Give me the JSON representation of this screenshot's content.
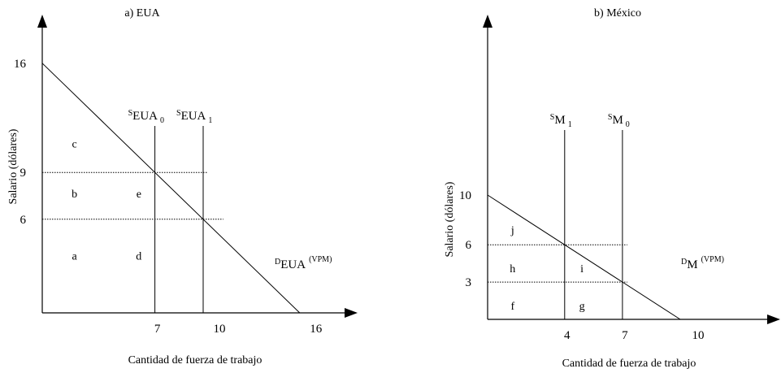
{
  "chart_data": [
    {
      "type": "line",
      "title": "a) EUA",
      "xlabel": "Cantidad de fuerza de trabajo",
      "ylabel": "Salario (dólares)",
      "x_ticks": [
        "7",
        "10",
        "16"
      ],
      "y_ticks": [
        "16",
        "9",
        "6"
      ],
      "xlim": [
        0,
        17
      ],
      "ylim": [
        0,
        19
      ],
      "demand": {
        "label_main": "EUA",
        "label_pre": "D",
        "label_sup": "(VPM)",
        "points": [
          [
            0,
            16
          ],
          [
            16,
            0
          ]
        ]
      },
      "supplies": [
        {
          "label_pre": "S",
          "label_main": "EUA",
          "label_sub": "0",
          "x": 7
        },
        {
          "label_pre": "S",
          "label_main": "EUA",
          "label_sub": "1",
          "x": 10
        }
      ],
      "wage_lines": [
        {
          "y": 9,
          "x_end": 10.25
        },
        {
          "y": 6,
          "x_end": 11.25
        }
      ],
      "areas": [
        {
          "label": "c",
          "x": 2.0,
          "y": 10.6
        },
        {
          "label": "b",
          "x": 2.0,
          "y": 7.4
        },
        {
          "label": "e",
          "x": 6.0,
          "y": 7.4
        },
        {
          "label": "a",
          "x": 2.0,
          "y": 3.4
        },
        {
          "label": "d",
          "x": 6.0,
          "y": 3.4
        }
      ]
    },
    {
      "type": "line",
      "title": "b) México",
      "xlabel": "Cantidad de fuerza de trabajo",
      "ylabel": "Salario (dólares)",
      "x_ticks": [
        "4",
        "7",
        "10"
      ],
      "y_ticks": [
        "10",
        "6",
        "3"
      ],
      "xlim": [
        0,
        16
      ],
      "ylim": [
        0,
        21
      ],
      "demand": {
        "label_main": "M",
        "label_pre": "D",
        "label_sup": "(VPM)",
        "points": [
          [
            0,
            10
          ],
          [
            10,
            0
          ]
        ]
      },
      "supplies": [
        {
          "label_pre": "S",
          "label_main": "M",
          "label_sub": "1",
          "x": 4
        },
        {
          "label_pre": "S",
          "label_main": "M",
          "label_sub": "0",
          "x": 7
        }
      ],
      "wage_lines": [
        {
          "y": 6,
          "x_end": 7.25
        },
        {
          "y": 3,
          "x_end": 7.25
        }
      ],
      "areas": [
        {
          "label": "j",
          "x": 1.3,
          "y": 6.9
        },
        {
          "label": "h",
          "x": 1.3,
          "y": 3.8
        },
        {
          "label": "i",
          "x": 4.9,
          "y": 3.8
        },
        {
          "label": "f",
          "x": 1.3,
          "y": 0.8
        },
        {
          "label": "g",
          "x": 4.9,
          "y": 0.8
        }
      ]
    }
  ]
}
